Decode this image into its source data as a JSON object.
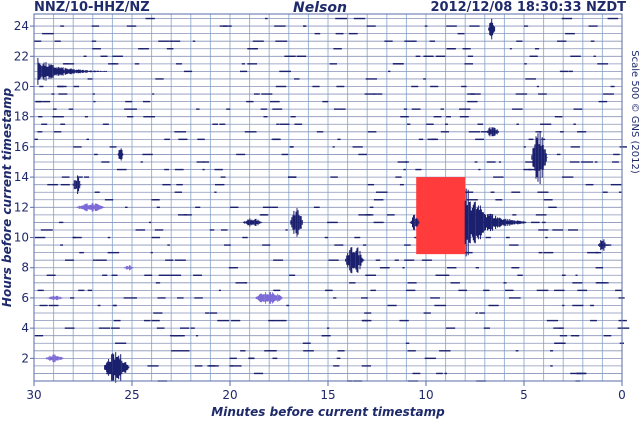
{
  "header": {
    "station": "NNZ/10-HHZ/NZ",
    "place": "Nelson",
    "timestamp": "2012/12/08 18:30:33 NZDT"
  },
  "credit": "Scale 500 © GNS (2012)",
  "colors": {
    "trace": "#1a1f6e",
    "trace_light": "#7c6bd6",
    "grid": "#9db6d6",
    "frame": "#5a6da8",
    "marker": "#ff3b3b"
  },
  "chart_data": {
    "type": "seismogram-helicorder",
    "xlabel": "Minutes before current timestamp",
    "ylabel": "Hours before current timestamp",
    "x_range": [
      30,
      0
    ],
    "y_range": [
      0.5,
      24.8
    ],
    "x_ticks": [
      30,
      25,
      20,
      15,
      10,
      5,
      0
    ],
    "y_ticks": [
      2,
      4,
      6,
      8,
      10,
      12,
      14,
      16,
      18,
      20,
      22,
      24
    ],
    "grid": true,
    "vertical_gridlines_minutes": [
      29,
      28,
      27,
      26,
      25,
      24,
      23,
      22,
      21,
      20,
      19,
      18,
      17,
      16,
      15,
      14,
      13,
      12,
      11,
      10,
      9,
      8,
      7,
      6,
      5,
      4,
      3,
      2,
      1
    ],
    "highlight_region": {
      "minutes": [
        10.5,
        8.0
      ],
      "hours": [
        8.9,
        14.0
      ],
      "color": "#ff3b3b"
    },
    "events": [
      {
        "minute": 8.0,
        "hour": 11.0,
        "amplitude": 1.0,
        "duration_min": 3.0,
        "color": "dark"
      },
      {
        "minute": 29.8,
        "hour": 21.0,
        "amplitude": 0.35,
        "duration_min": 3.5,
        "color": "dark"
      },
      {
        "minute": 4.6,
        "hour": 15.3,
        "amplitude": 0.7,
        "duration_min": 1.0,
        "color": "dark"
      },
      {
        "minute": 16.9,
        "hour": 11.0,
        "amplitude": 0.4,
        "duration_min": 0.8,
        "color": "dark"
      },
      {
        "minute": 14.1,
        "hour": 8.5,
        "amplitude": 0.4,
        "duration_min": 1.2,
        "color": "dark"
      },
      {
        "minute": 28.0,
        "hour": 13.5,
        "amplitude": 0.25,
        "duration_min": 0.5,
        "color": "dark"
      },
      {
        "minute": 10.8,
        "hour": 11.0,
        "amplitude": 0.2,
        "duration_min": 0.6,
        "color": "dark"
      },
      {
        "minute": 1.2,
        "hour": 9.5,
        "amplitude": 0.2,
        "duration_min": 0.5,
        "color": "dark"
      },
      {
        "minute": 19.3,
        "hour": 11.0,
        "amplitude": 0.12,
        "duration_min": 1.2,
        "color": "dark"
      },
      {
        "minute": 6.9,
        "hour": 17.0,
        "amplitude": 0.15,
        "duration_min": 0.8,
        "color": "dark"
      },
      {
        "minute": 25.7,
        "hour": 15.5,
        "amplitude": 0.2,
        "duration_min": 0.3,
        "color": "dark"
      },
      {
        "minute": 6.8,
        "hour": 23.8,
        "amplitude": 0.4,
        "duration_min": 0.4,
        "color": "dark"
      },
      {
        "minute": 26.4,
        "hour": 1.4,
        "amplitude": 0.4,
        "duration_min": 1.6,
        "color": "dark"
      },
      {
        "minute": 18.7,
        "hour": 6.0,
        "amplitude": 0.2,
        "duration_min": 1.8,
        "color": "light"
      },
      {
        "minute": 27.8,
        "hour": 12.0,
        "amplitude": 0.12,
        "duration_min": 1.8,
        "color": "light"
      },
      {
        "minute": 29.4,
        "hour": 2.0,
        "amplitude": 0.1,
        "duration_min": 1.2,
        "color": "light"
      },
      {
        "minute": 25.4,
        "hour": 8.0,
        "amplitude": 0.08,
        "duration_min": 0.6,
        "color": "light"
      },
      {
        "minute": 29.3,
        "hour": 6.0,
        "amplitude": 0.06,
        "duration_min": 1.0,
        "color": "light"
      }
    ]
  }
}
